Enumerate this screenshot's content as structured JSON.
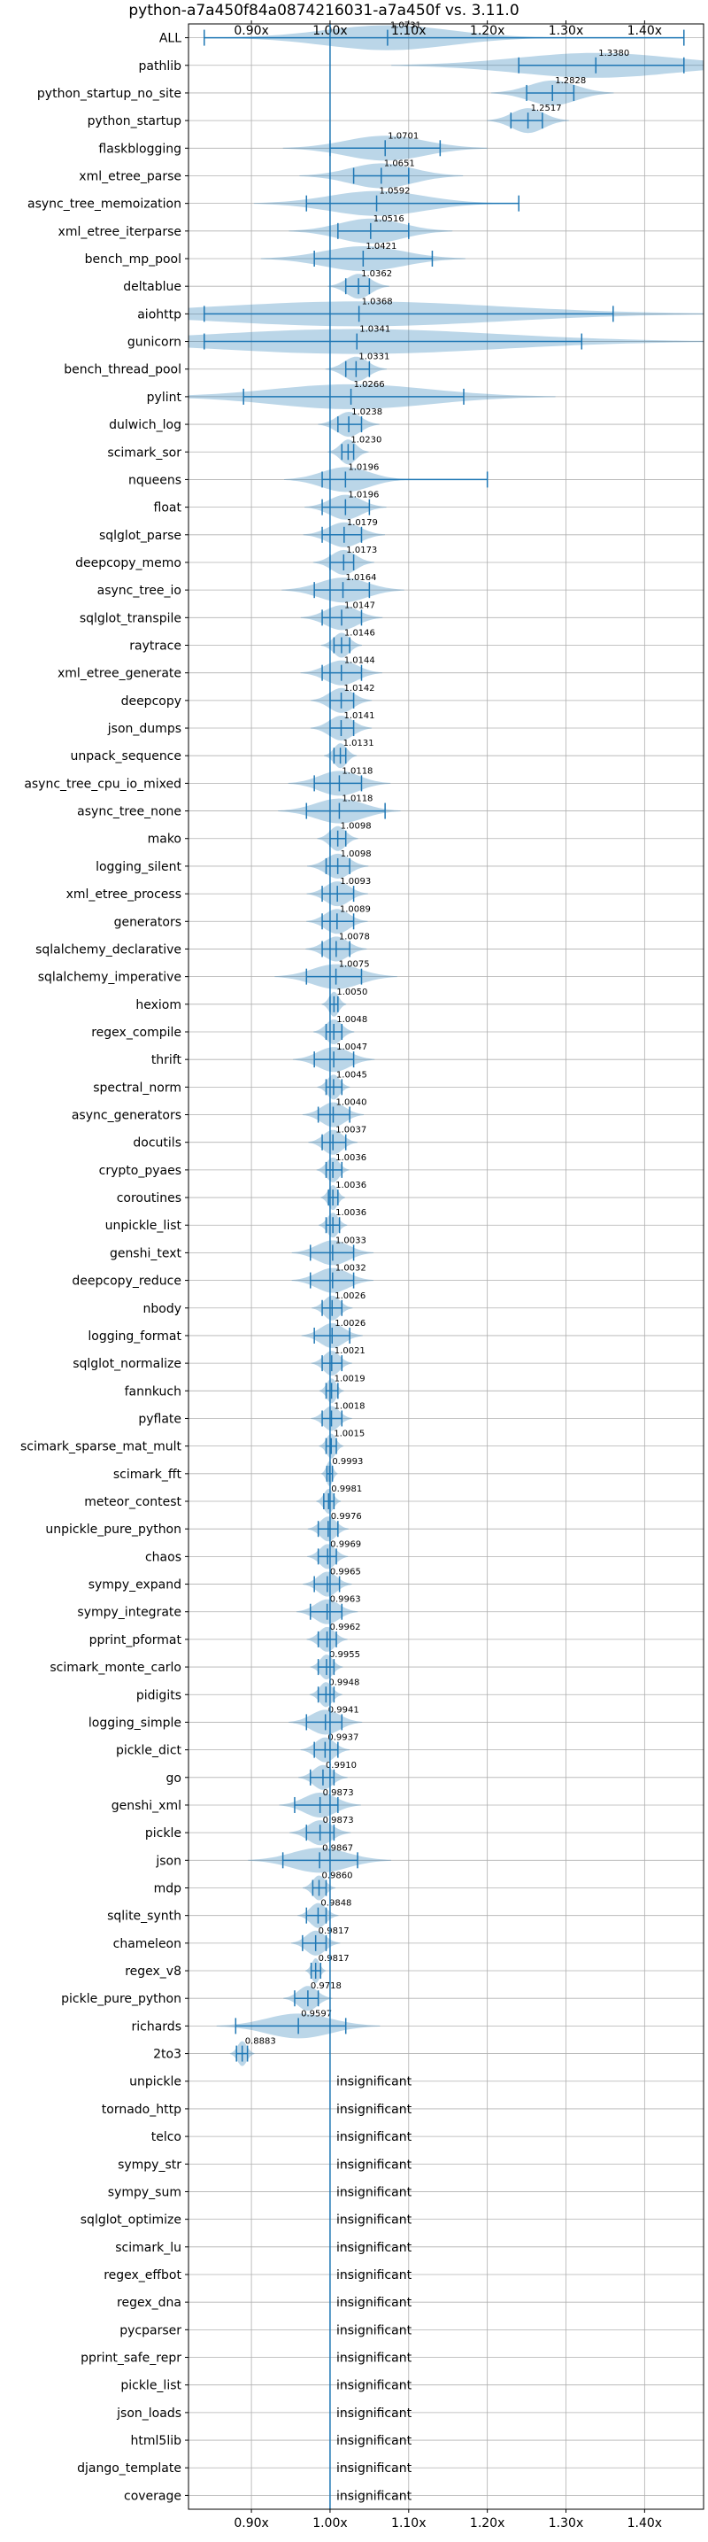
{
  "chart_data": {
    "type": "violin",
    "title": "python-a7a450f84a0874216031-a7a450f vs. 3.11.0",
    "xlim": [
      0.82,
      1.475
    ],
    "xticks": [
      0.9,
      1.0,
      1.1,
      1.2,
      1.3,
      1.4
    ],
    "xtick_labels": [
      "0.90x",
      "1.00x",
      "1.10x",
      "1.20x",
      "1.30x",
      "1.40x"
    ],
    "reference_line": 1.0,
    "grid": true,
    "benchmarks": [
      {
        "name": "ALL",
        "mean": 1.0731,
        "label": "1.0731",
        "min": 0.84,
        "max": 1.45,
        "spread": 0.08
      },
      {
        "name": "pathlib",
        "mean": 1.338,
        "label": "1.3380",
        "min": 1.24,
        "max": 1.45,
        "spread": 0.1
      },
      {
        "name": "python_startup_no_site",
        "mean": 1.2828,
        "label": "1.2828",
        "min": 1.25,
        "max": 1.31,
        "spread": 0.03
      },
      {
        "name": "python_startup",
        "mean": 1.2517,
        "label": "1.2517",
        "min": 1.23,
        "max": 1.27,
        "spread": 0.02
      },
      {
        "name": "flaskblogging",
        "mean": 1.0701,
        "label": "1.0701",
        "min": 1.0,
        "max": 1.14,
        "spread": 0.05
      },
      {
        "name": "xml_etree_parse",
        "mean": 1.0651,
        "label": "1.0651",
        "min": 1.03,
        "max": 1.1,
        "spread": 0.04
      },
      {
        "name": "async_tree_memoization",
        "mean": 1.0592,
        "label": "1.0592",
        "min": 0.97,
        "max": 1.24,
        "spread": 0.06
      },
      {
        "name": "xml_etree_iterparse",
        "mean": 1.0516,
        "label": "1.0516",
        "min": 1.01,
        "max": 1.1,
        "spread": 0.04
      },
      {
        "name": "bench_mp_pool",
        "mean": 1.0421,
        "label": "1.0421",
        "min": 0.98,
        "max": 1.13,
        "spread": 0.05
      },
      {
        "name": "deltablue",
        "mean": 1.0362,
        "label": "1.0362",
        "min": 1.02,
        "max": 1.05,
        "spread": 0.015
      },
      {
        "name": "aiohttp",
        "mean": 1.0368,
        "label": "1.0368",
        "min": 0.84,
        "max": 1.36,
        "spread": 0.18
      },
      {
        "name": "gunicorn",
        "mean": 1.0341,
        "label": "1.0341",
        "min": 0.84,
        "max": 1.32,
        "spread": 0.18
      },
      {
        "name": "bench_thread_pool",
        "mean": 1.0331,
        "label": "1.0331",
        "min": 1.02,
        "max": 1.05,
        "spread": 0.015
      },
      {
        "name": "pylint",
        "mean": 1.0266,
        "label": "1.0266",
        "min": 0.89,
        "max": 1.17,
        "spread": 0.1
      },
      {
        "name": "dulwich_log",
        "mean": 1.0238,
        "label": "1.0238",
        "min": 1.01,
        "max": 1.04,
        "spread": 0.015
      },
      {
        "name": "scimark_sor",
        "mean": 1.023,
        "label": "1.0230",
        "min": 1.015,
        "max": 1.03,
        "spread": 0.01
      },
      {
        "name": "nqueens",
        "mean": 1.0196,
        "label": "1.0196",
        "min": 0.99,
        "max": 1.2,
        "spread": 0.03
      },
      {
        "name": "float",
        "mean": 1.0196,
        "label": "1.0196",
        "min": 0.99,
        "max": 1.05,
        "spread": 0.02
      },
      {
        "name": "sqlglot_parse",
        "mean": 1.0179,
        "label": "1.0179",
        "min": 0.99,
        "max": 1.04,
        "spread": 0.02
      },
      {
        "name": "deepcopy_memo",
        "mean": 1.0173,
        "label": "1.0173",
        "min": 1.0,
        "max": 1.03,
        "spread": 0.015
      },
      {
        "name": "async_tree_io",
        "mean": 1.0164,
        "label": "1.0164",
        "min": 0.98,
        "max": 1.05,
        "spread": 0.03
      },
      {
        "name": "sqlglot_transpile",
        "mean": 1.0147,
        "label": "1.0147",
        "min": 0.99,
        "max": 1.04,
        "spread": 0.02
      },
      {
        "name": "raytrace",
        "mean": 1.0146,
        "label": "1.0146",
        "min": 1.005,
        "max": 1.025,
        "spread": 0.01
      },
      {
        "name": "xml_etree_generate",
        "mean": 1.0144,
        "label": "1.0144",
        "min": 0.99,
        "max": 1.04,
        "spread": 0.02
      },
      {
        "name": "deepcopy",
        "mean": 1.0142,
        "label": "1.0142",
        "min": 1.0,
        "max": 1.03,
        "spread": 0.015
      },
      {
        "name": "json_dumps",
        "mean": 1.0141,
        "label": "1.0141",
        "min": 1.0,
        "max": 1.03,
        "spread": 0.015
      },
      {
        "name": "unpack_sequence",
        "mean": 1.0131,
        "label": "1.0131",
        "min": 1.005,
        "max": 1.02,
        "spread": 0.008
      },
      {
        "name": "async_tree_cpu_io_mixed",
        "mean": 1.0118,
        "label": "1.0118",
        "min": 0.98,
        "max": 1.04,
        "spread": 0.025
      },
      {
        "name": "async_tree_none",
        "mean": 1.0118,
        "label": "1.0118",
        "min": 0.97,
        "max": 1.07,
        "spread": 0.03
      },
      {
        "name": "mako",
        "mean": 1.0098,
        "label": "1.0098",
        "min": 1.0,
        "max": 1.02,
        "spread": 0.01
      },
      {
        "name": "logging_silent",
        "mean": 1.0098,
        "label": "1.0098",
        "min": 0.995,
        "max": 1.025,
        "spread": 0.015
      },
      {
        "name": "xml_etree_process",
        "mean": 1.0093,
        "label": "1.0093",
        "min": 0.99,
        "max": 1.03,
        "spread": 0.015
      },
      {
        "name": "generators",
        "mean": 1.0089,
        "label": "1.0089",
        "min": 0.99,
        "max": 1.03,
        "spread": 0.015
      },
      {
        "name": "sqlalchemy_declarative",
        "mean": 1.0078,
        "label": "1.0078",
        "min": 0.99,
        "max": 1.025,
        "spread": 0.015
      },
      {
        "name": "sqlalchemy_imperative",
        "mean": 1.0075,
        "label": "1.0075",
        "min": 0.97,
        "max": 1.04,
        "spread": 0.03
      },
      {
        "name": "hexiom",
        "mean": 1.005,
        "label": "1.0050",
        "min": 1.0,
        "max": 1.01,
        "spread": 0.006
      },
      {
        "name": "regex_compile",
        "mean": 1.0048,
        "label": "1.0048",
        "min": 0.995,
        "max": 1.015,
        "spread": 0.01
      },
      {
        "name": "thrift",
        "mean": 1.0047,
        "label": "1.0047",
        "min": 0.98,
        "max": 1.03,
        "spread": 0.02
      },
      {
        "name": "spectral_norm",
        "mean": 1.0045,
        "label": "1.0045",
        "min": 0.995,
        "max": 1.015,
        "spread": 0.008
      },
      {
        "name": "async_generators",
        "mean": 1.004,
        "label": "1.0040",
        "min": 0.985,
        "max": 1.025,
        "spread": 0.015
      },
      {
        "name": "docutils",
        "mean": 1.0037,
        "label": "1.0037",
        "min": 0.99,
        "max": 1.02,
        "spread": 0.012
      },
      {
        "name": "crypto_pyaes",
        "mean": 1.0036,
        "label": "1.0036",
        "min": 0.995,
        "max": 1.015,
        "spread": 0.008
      },
      {
        "name": "coroutines",
        "mean": 1.0036,
        "label": "1.0036",
        "min": 0.998,
        "max": 1.01,
        "spread": 0.006
      },
      {
        "name": "unpickle_list",
        "mean": 1.0036,
        "label": "1.0036",
        "min": 0.995,
        "max": 1.012,
        "spread": 0.007
      },
      {
        "name": "genshi_text",
        "mean": 1.0033,
        "label": "1.0033",
        "min": 0.975,
        "max": 1.03,
        "spread": 0.02
      },
      {
        "name": "deepcopy_reduce",
        "mean": 1.0032,
        "label": "1.0032",
        "min": 0.975,
        "max": 1.03,
        "spread": 0.02
      },
      {
        "name": "nbody",
        "mean": 1.0026,
        "label": "1.0026",
        "min": 0.99,
        "max": 1.015,
        "spread": 0.01
      },
      {
        "name": "logging_format",
        "mean": 1.0026,
        "label": "1.0026",
        "min": 0.98,
        "max": 1.025,
        "spread": 0.015
      },
      {
        "name": "sqlglot_normalize",
        "mean": 1.0021,
        "label": "1.0021",
        "min": 0.99,
        "max": 1.015,
        "spread": 0.01
      },
      {
        "name": "fannkuch",
        "mean": 1.0019,
        "label": "1.0019",
        "min": 0.995,
        "max": 1.01,
        "spread": 0.006
      },
      {
        "name": "pyflate",
        "mean": 1.0018,
        "label": "1.0018",
        "min": 0.99,
        "max": 1.015,
        "spread": 0.01
      },
      {
        "name": "scimark_sparse_mat_mult",
        "mean": 1.0015,
        "label": "1.0015",
        "min": 0.995,
        "max": 1.008,
        "spread": 0.006
      },
      {
        "name": "scimark_fft",
        "mean": 0.9993,
        "label": "0.9993",
        "min": 0.996,
        "max": 1.003,
        "spread": 0.004
      },
      {
        "name": "meteor_contest",
        "mean": 0.9981,
        "label": "0.9981",
        "min": 0.992,
        "max": 1.005,
        "spread": 0.006
      },
      {
        "name": "unpickle_pure_python",
        "mean": 0.9976,
        "label": "0.9976",
        "min": 0.985,
        "max": 1.01,
        "spread": 0.01
      },
      {
        "name": "chaos",
        "mean": 0.9969,
        "label": "0.9969",
        "min": 0.985,
        "max": 1.008,
        "spread": 0.01
      },
      {
        "name": "sympy_expand",
        "mean": 0.9965,
        "label": "0.9965",
        "min": 0.98,
        "max": 1.012,
        "spread": 0.012
      },
      {
        "name": "sympy_integrate",
        "mean": 0.9963,
        "label": "0.9963",
        "min": 0.975,
        "max": 1.015,
        "spread": 0.015
      },
      {
        "name": "pprint_pformat",
        "mean": 0.9962,
        "label": "0.9962",
        "min": 0.985,
        "max": 1.008,
        "spread": 0.01
      },
      {
        "name": "scimark_monte_carlo",
        "mean": 0.9955,
        "label": "0.9955",
        "min": 0.985,
        "max": 1.005,
        "spread": 0.008
      },
      {
        "name": "pidigits",
        "mean": 0.9948,
        "label": "0.9948",
        "min": 0.985,
        "max": 1.005,
        "spread": 0.008
      },
      {
        "name": "logging_simple",
        "mean": 0.9941,
        "label": "0.9941",
        "min": 0.97,
        "max": 1.015,
        "spread": 0.018
      },
      {
        "name": "pickle_dict",
        "mean": 0.9937,
        "label": "0.9937",
        "min": 0.98,
        "max": 1.01,
        "spread": 0.012
      },
      {
        "name": "go",
        "mean": 0.991,
        "label": "0.9910",
        "min": 0.975,
        "max": 1.005,
        "spread": 0.012
      },
      {
        "name": "genshi_xml",
        "mean": 0.9873,
        "label": "0.9873",
        "min": 0.955,
        "max": 1.01,
        "spread": 0.02
      },
      {
        "name": "pickle",
        "mean": 0.9873,
        "label": "0.9873",
        "min": 0.97,
        "max": 1.005,
        "spread": 0.015
      },
      {
        "name": "json",
        "mean": 0.9867,
        "label": "0.9867",
        "min": 0.94,
        "max": 1.035,
        "spread": 0.035
      },
      {
        "name": "mdp",
        "mean": 0.986,
        "label": "0.9860",
        "min": 0.978,
        "max": 0.995,
        "spread": 0.008
      },
      {
        "name": "sqlite_synth",
        "mean": 0.9848,
        "label": "0.9848",
        "min": 0.97,
        "max": 0.995,
        "spread": 0.01
      },
      {
        "name": "chameleon",
        "mean": 0.9817,
        "label": "0.9817",
        "min": 0.965,
        "max": 0.995,
        "spread": 0.012
      },
      {
        "name": "regex_v8",
        "mean": 0.9817,
        "label": "0.9817",
        "min": 0.976,
        "max": 0.988,
        "spread": 0.005
      },
      {
        "name": "pickle_pure_python",
        "mean": 0.9718,
        "label": "0.9718",
        "min": 0.955,
        "max": 0.985,
        "spread": 0.012
      },
      {
        "name": "richards",
        "mean": 0.9597,
        "label": "0.9597",
        "min": 0.88,
        "max": 1.02,
        "spread": 0.04
      },
      {
        "name": "2to3",
        "mean": 0.8883,
        "label": "0.8883",
        "min": 0.881,
        "max": 0.895,
        "spread": 0.006
      },
      {
        "name": "unpickle",
        "mean": null,
        "label": "insignificant"
      },
      {
        "name": "tornado_http",
        "mean": null,
        "label": "insignificant"
      },
      {
        "name": "telco",
        "mean": null,
        "label": "insignificant"
      },
      {
        "name": "sympy_str",
        "mean": null,
        "label": "insignificant"
      },
      {
        "name": "sympy_sum",
        "mean": null,
        "label": "insignificant"
      },
      {
        "name": "sqlglot_optimize",
        "mean": null,
        "label": "insignificant"
      },
      {
        "name": "scimark_lu",
        "mean": null,
        "label": "insignificant"
      },
      {
        "name": "regex_effbot",
        "mean": null,
        "label": "insignificant"
      },
      {
        "name": "regex_dna",
        "mean": null,
        "label": "insignificant"
      },
      {
        "name": "pycparser",
        "mean": null,
        "label": "insignificant"
      },
      {
        "name": "pprint_safe_repr",
        "mean": null,
        "label": "insignificant"
      },
      {
        "name": "pickle_list",
        "mean": null,
        "label": "insignificant"
      },
      {
        "name": "json_loads",
        "mean": null,
        "label": "insignificant"
      },
      {
        "name": "html5lib",
        "mean": null,
        "label": "insignificant"
      },
      {
        "name": "django_template",
        "mean": null,
        "label": "insignificant"
      },
      {
        "name": "coverage",
        "mean": null,
        "label": "insignificant"
      }
    ]
  },
  "colors": {
    "violin": "#1f77b4",
    "grid": "#b0b0b0",
    "axis": "#000000"
  }
}
